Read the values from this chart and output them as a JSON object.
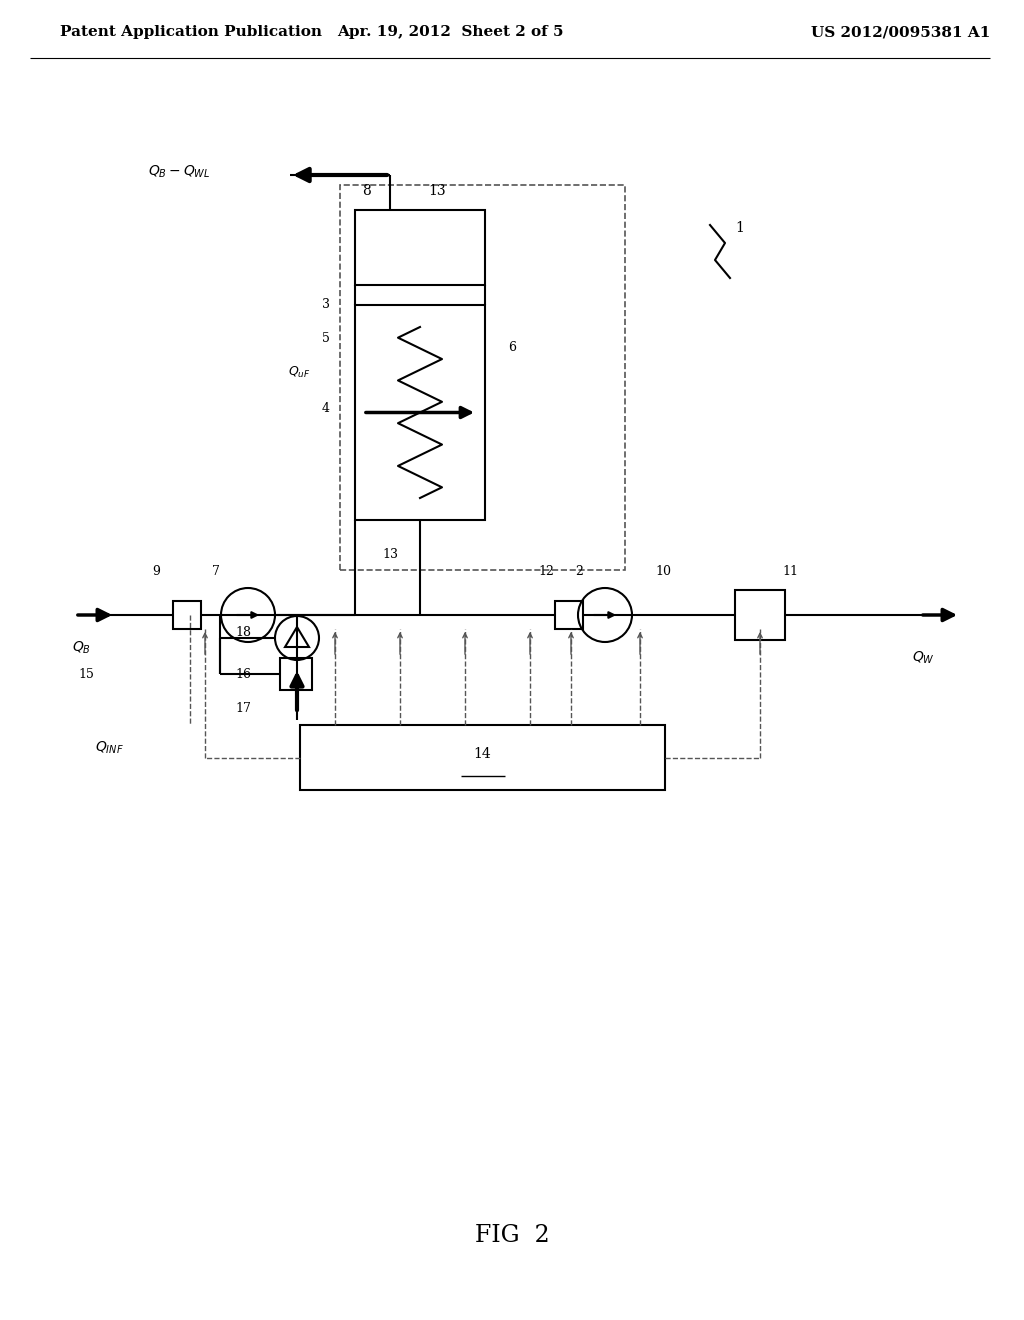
{
  "bg_color": "#ffffff",
  "lc": "#000000",
  "dc": "#555555",
  "header_left": "Patent Application Publication",
  "header_center": "Apr. 19, 2012  Sheet 2 of 5",
  "header_right": "US 2012/0095381 A1",
  "fig_label": "FIG  2",
  "header_fontsize": 11,
  "label_fontsize": 10,
  "small_fontsize": 9,
  "fig_label_fontsize": 17
}
